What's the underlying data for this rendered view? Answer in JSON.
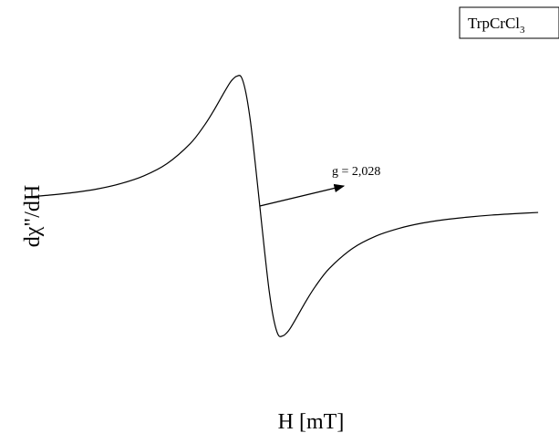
{
  "chart_data": {
    "type": "line",
    "title": "",
    "xlabel": "H [mT]",
    "ylabel": "dχ\"/dH",
    "legend": {
      "prefix": "TrpCrCl",
      "subscript": "3",
      "placement": "top-right"
    },
    "annotation": {
      "text": "g = 2,028",
      "target": {
        "x": 0.0,
        "y": 0.0
      }
    },
    "grid": false,
    "x_ticks": [],
    "y_ticks": [],
    "xlim": [
      -5.6,
      6.45
    ],
    "ylim": [
      -1.15,
      1.15
    ],
    "series": [
      {
        "color": "#000000",
        "points": [
          {
            "x": -5.0,
            "y": 0.069
          },
          {
            "x": -4.5,
            "y": 0.084
          },
          {
            "x": -4.0,
            "y": 0.103
          },
          {
            "x": -3.5,
            "y": 0.13
          },
          {
            "x": -3.0,
            "y": 0.17
          },
          {
            "x": -2.5,
            "y": 0.229
          },
          {
            "x": -2.0,
            "y": 0.322
          },
          {
            "x": -1.5,
            "y": 0.474
          },
          {
            "x": -1.2,
            "y": 0.61
          },
          {
            "x": -1.0,
            "y": 0.721
          },
          {
            "x": -0.8,
            "y": 0.844
          },
          {
            "x": -0.65,
            "y": 0.933
          },
          {
            "x": -0.577,
            "y": 0.965
          },
          {
            "x": -0.5,
            "y": 0.986
          },
          {
            "x": -0.4,
            "y": 0.981
          },
          {
            "x": -0.3,
            "y": 0.861
          },
          {
            "x": -0.2,
            "y": 0.639
          },
          {
            "x": -0.1,
            "y": 0.332
          },
          {
            "x": 0.0,
            "y": 0.0
          },
          {
            "x": 0.1,
            "y": -0.332
          },
          {
            "x": 0.2,
            "y": -0.639
          },
          {
            "x": 0.3,
            "y": -0.861
          },
          {
            "x": 0.4,
            "y": -0.981
          },
          {
            "x": 0.5,
            "y": -0.986
          },
          {
            "x": 0.577,
            "y": -0.965
          },
          {
            "x": 0.65,
            "y": -0.933
          },
          {
            "x": 0.8,
            "y": -0.844
          },
          {
            "x": 1.0,
            "y": -0.721
          },
          {
            "x": 1.2,
            "y": -0.61
          },
          {
            "x": 1.5,
            "y": -0.474
          },
          {
            "x": 2.0,
            "y": -0.322
          },
          {
            "x": 2.5,
            "y": -0.229
          },
          {
            "x": 3.0,
            "y": -0.17
          },
          {
            "x": 3.5,
            "y": -0.13
          },
          {
            "x": 4.0,
            "y": -0.103
          },
          {
            "x": 4.5,
            "y": -0.084
          },
          {
            "x": 5.0,
            "y": -0.069
          },
          {
            "x": 5.5,
            "y": -0.058
          },
          {
            "x": 6.0,
            "y": -0.049
          }
        ]
      }
    ]
  }
}
